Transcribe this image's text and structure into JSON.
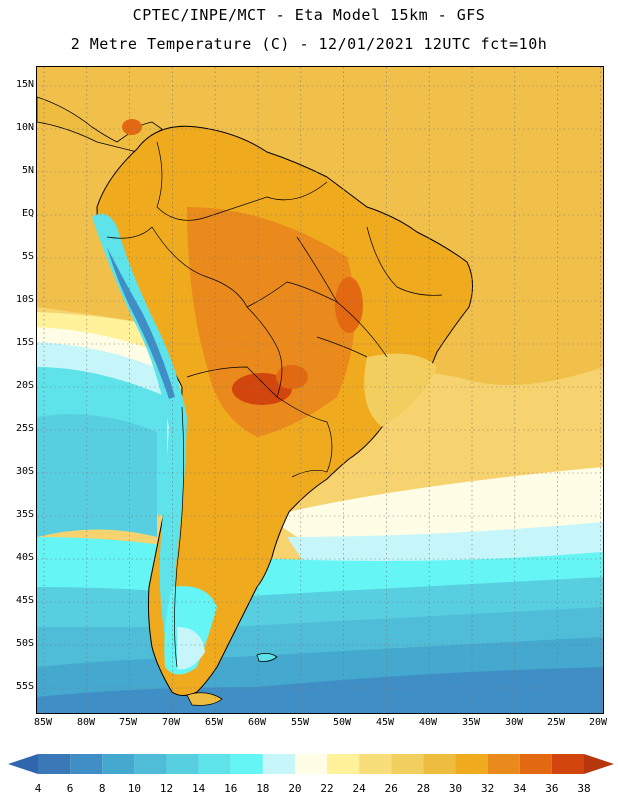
{
  "header": {
    "line1": "CPTEC/INPE/MCT -  Eta Model 15km - GFS",
    "line2": "2 Metre Temperature (C) - 12/01/2021 12UTC fct=10h"
  },
  "map": {
    "latitude_labels": [
      "15N",
      "10N",
      "5N",
      "EQ",
      "5S",
      "10S",
      "15S",
      "20S",
      "25S",
      "30S",
      "35S",
      "40S",
      "45S",
      "50S",
      "55S"
    ],
    "longitude_labels": [
      "85W",
      "80W",
      "75W",
      "70W",
      "65W",
      "60W",
      "55W",
      "50W",
      "45W",
      "40W",
      "35W",
      "30W",
      "25W",
      "20W"
    ],
    "region": "South America",
    "colors": {
      "coast": "#000000",
      "grid": "#666666",
      "ocean_warm": "#f6d36e",
      "ocean_hot": "#f0c04a",
      "land_hot": "#e49a2a",
      "land_hottest": "#c8501a",
      "andes_cold": "#5fe8ee"
    }
  },
  "colorbar": {
    "ticks": [
      "4",
      "6",
      "8",
      "10",
      "12",
      "14",
      "16",
      "18",
      "20",
      "22",
      "24",
      "26",
      "28",
      "30",
      "32",
      "34",
      "36",
      "38"
    ],
    "colors": [
      "#3a78b8",
      "#3f8fc6",
      "#44a8cf",
      "#4fbcd8",
      "#58cfe0",
      "#5ee3ea",
      "#64f5f4",
      "#c6f6fa",
      "#fffde6",
      "#fff29a",
      "#f8de7a",
      "#f2ce5e",
      "#eebd40",
      "#f0aa1e",
      "#ea8a1c",
      "#e26812",
      "#d2460e"
    ],
    "left_arrow_color": "#2f66ad",
    "right_arrow_color": "#b8360e"
  }
}
